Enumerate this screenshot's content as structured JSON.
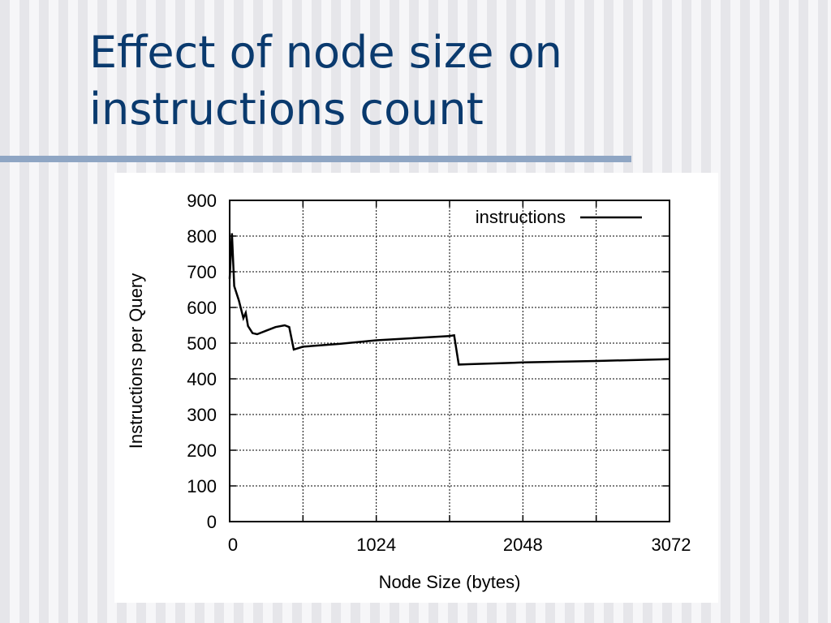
{
  "slide": {
    "title": "Effect of node size on instructions count"
  },
  "chart_data": {
    "type": "line",
    "xlabel": "Node Size (bytes)",
    "ylabel": "Instructions per Query",
    "xlim": [
      0,
      3072
    ],
    "ylim": [
      0,
      900
    ],
    "x_ticks": [
      0,
      1024,
      2048,
      3072
    ],
    "x_gridlines": [
      0,
      512,
      1024,
      1536,
      2048,
      2560,
      3072
    ],
    "y_ticks": [
      0,
      100,
      200,
      300,
      400,
      500,
      600,
      700,
      800,
      900
    ],
    "grid": true,
    "legend_position": "top-right",
    "series": [
      {
        "name": "instructions",
        "color": "#000000",
        "x": [
          0,
          16,
          32,
          64,
          96,
          112,
          128,
          160,
          192,
          256,
          320,
          384,
          416,
          448,
          512,
          768,
          1024,
          1536,
          1568,
          1600,
          1664,
          2048,
          2560,
          3072
        ],
        "y": [
          680,
          808,
          660,
          620,
          570,
          585,
          548,
          528,
          525,
          535,
          545,
          550,
          545,
          482,
          490,
          498,
          508,
          520,
          522,
          440,
          441,
          446,
          450,
          455
        ]
      }
    ]
  }
}
